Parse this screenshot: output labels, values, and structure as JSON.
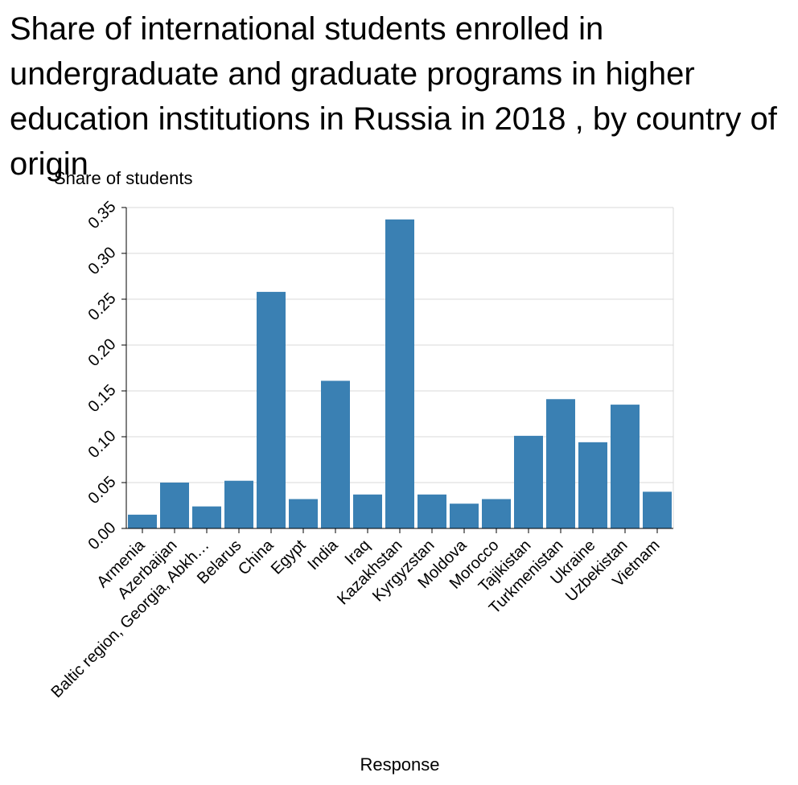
{
  "chart_data": {
    "type": "bar",
    "title": "Share of international students enrolled in undergraduate and graduate programs in higher education institutions in Russia in 2018 , by country of origin",
    "xlabel": "Response",
    "ylabel": "Share of students",
    "ylim": [
      0,
      0.35
    ],
    "yticks": [
      "0.00",
      "0.05",
      "0.10",
      "0.15",
      "0.20",
      "0.25",
      "0.30",
      "0.35"
    ],
    "categories": [
      "Armenia",
      "Azerbaijan",
      "Baltic region, Georgia, Abkh…",
      "Belarus",
      "China",
      "Egypt",
      "India",
      "Iraq",
      "Kazakhstan",
      "Kyrgyzstan",
      "Moldova",
      "Morocco",
      "Tajikistan",
      "Turkmenistan",
      "Ukraine",
      "Uzbekistan",
      "Vietnam"
    ],
    "values": [
      0.015,
      0.05,
      0.024,
      0.052,
      0.258,
      0.032,
      0.161,
      0.037,
      0.337,
      0.037,
      0.027,
      0.032,
      0.101,
      0.141,
      0.094,
      0.135,
      0.04
    ],
    "bar_color": "#3a80b3",
    "grid": true,
    "legend": "none"
  }
}
